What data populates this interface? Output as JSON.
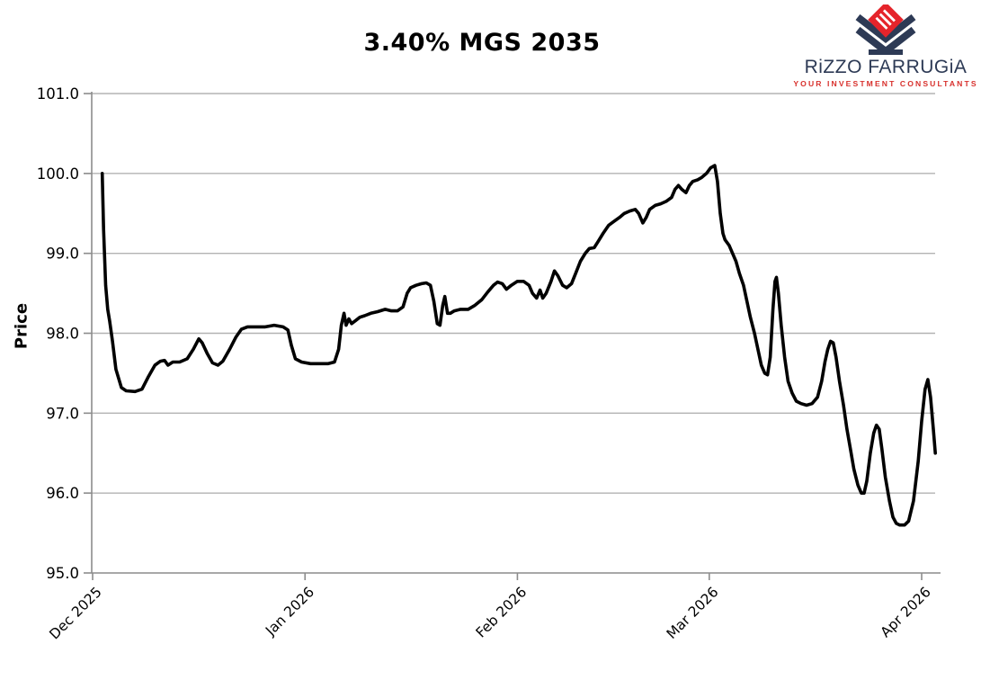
{
  "logo": {
    "name": "RiZZO FARRUGiA",
    "tagline": "YOUR INVESTMENT CONSULTANTS",
    "navy": "#2d3a55",
    "red": "#e5242b"
  },
  "chart_data": {
    "type": "line",
    "title": "3.40% MGS 2035",
    "xlabel": "",
    "ylabel": "Price",
    "ylim": [
      95.0,
      101.0
    ],
    "yticks": [
      95.0,
      96.0,
      97.0,
      98.0,
      99.0,
      100.0,
      101.0
    ],
    "ytick_labels": [
      "95.0",
      "96.0",
      "97.0",
      "98.0",
      "99.0",
      "100.0",
      "101.0"
    ],
    "xtick_labels": [
      "Dec 2025",
      "Jan 2026",
      "Feb 2026",
      "Mar 2026",
      "Apr 2026"
    ],
    "xtick_days": [
      0,
      31,
      62,
      90,
      121
    ],
    "grid": true,
    "legend": "none",
    "line_color": "#000000",
    "grid_color": "#b3b3b3",
    "spine_color": "#8c8c8c",
    "series": [
      {
        "name": "3.40% MGS 2035 price (days since 1 Dec 2025, price)",
        "points": [
          [
            1.4,
            100.0
          ],
          [
            1.6,
            99.3
          ],
          [
            1.9,
            98.6
          ],
          [
            2.2,
            98.3
          ],
          [
            2.5,
            98.15
          ],
          [
            2.9,
            97.9
          ],
          [
            3.4,
            97.55
          ],
          [
            4.2,
            97.32
          ],
          [
            4.9,
            97.28
          ],
          [
            6.2,
            97.27
          ],
          [
            7.2,
            97.3
          ],
          [
            8.1,
            97.45
          ],
          [
            9.1,
            97.6
          ],
          [
            9.9,
            97.65
          ],
          [
            10.5,
            97.66
          ],
          [
            11.0,
            97.6
          ],
          [
            11.7,
            97.64
          ],
          [
            12.7,
            97.64
          ],
          [
            13.8,
            97.68
          ],
          [
            14.7,
            97.8
          ],
          [
            15.5,
            97.93
          ],
          [
            16.0,
            97.88
          ],
          [
            16.7,
            97.75
          ],
          [
            17.5,
            97.63
          ],
          [
            18.3,
            97.6
          ],
          [
            19.0,
            97.65
          ],
          [
            20.0,
            97.8
          ],
          [
            20.9,
            97.95
          ],
          [
            21.7,
            98.05
          ],
          [
            22.6,
            98.08
          ],
          [
            23.9,
            98.08
          ],
          [
            25.2,
            98.08
          ],
          [
            26.5,
            98.1
          ],
          [
            27.8,
            98.08
          ],
          [
            28.5,
            98.04
          ],
          [
            29.0,
            97.85
          ],
          [
            29.6,
            97.68
          ],
          [
            30.5,
            97.64
          ],
          [
            31.8,
            97.62
          ],
          [
            33.1,
            97.62
          ],
          [
            34.4,
            97.62
          ],
          [
            35.3,
            97.64
          ],
          [
            35.9,
            97.8
          ],
          [
            36.3,
            98.1
          ],
          [
            36.7,
            98.25
          ],
          [
            37.0,
            98.1
          ],
          [
            37.4,
            98.18
          ],
          [
            37.8,
            98.12
          ],
          [
            38.4,
            98.16
          ],
          [
            39.0,
            98.2
          ],
          [
            39.7,
            98.22
          ],
          [
            40.6,
            98.25
          ],
          [
            41.6,
            98.27
          ],
          [
            42.7,
            98.3
          ],
          [
            43.6,
            98.28
          ],
          [
            44.5,
            98.28
          ],
          [
            45.3,
            98.33
          ],
          [
            45.9,
            98.5
          ],
          [
            46.4,
            98.57
          ],
          [
            47.2,
            98.6
          ],
          [
            48.0,
            98.62
          ],
          [
            48.7,
            98.63
          ],
          [
            49.3,
            98.6
          ],
          [
            49.8,
            98.4
          ],
          [
            50.3,
            98.12
          ],
          [
            50.7,
            98.1
          ],
          [
            51.1,
            98.35
          ],
          [
            51.4,
            98.46
          ],
          [
            51.8,
            98.25
          ],
          [
            52.2,
            98.25
          ],
          [
            52.8,
            98.28
          ],
          [
            53.7,
            98.3
          ],
          [
            54.8,
            98.3
          ],
          [
            55.8,
            98.35
          ],
          [
            56.8,
            98.42
          ],
          [
            57.7,
            98.52
          ],
          [
            58.5,
            98.6
          ],
          [
            59.1,
            98.64
          ],
          [
            59.8,
            98.62
          ],
          [
            60.4,
            98.55
          ],
          [
            61.1,
            98.6
          ],
          [
            62.0,
            98.65
          ],
          [
            62.9,
            98.65
          ],
          [
            63.7,
            98.6
          ],
          [
            64.2,
            98.5
          ],
          [
            64.8,
            98.44
          ],
          [
            65.3,
            98.54
          ],
          [
            65.7,
            98.44
          ],
          [
            66.2,
            98.5
          ],
          [
            66.9,
            98.65
          ],
          [
            67.4,
            98.78
          ],
          [
            67.9,
            98.72
          ],
          [
            68.6,
            98.6
          ],
          [
            69.2,
            98.57
          ],
          [
            69.9,
            98.62
          ],
          [
            70.5,
            98.75
          ],
          [
            71.2,
            98.9
          ],
          [
            71.9,
            99.0
          ],
          [
            72.5,
            99.06
          ],
          [
            73.2,
            99.07
          ],
          [
            73.8,
            99.15
          ],
          [
            74.5,
            99.25
          ],
          [
            75.3,
            99.35
          ],
          [
            76.1,
            99.4
          ],
          [
            76.9,
            99.45
          ],
          [
            77.6,
            99.5
          ],
          [
            78.4,
            99.53
          ],
          [
            79.2,
            99.55
          ],
          [
            79.7,
            99.5
          ],
          [
            80.3,
            99.38
          ],
          [
            80.8,
            99.45
          ],
          [
            81.3,
            99.55
          ],
          [
            82.1,
            99.6
          ],
          [
            82.9,
            99.62
          ],
          [
            83.7,
            99.65
          ],
          [
            84.5,
            99.7
          ],
          [
            85.0,
            99.8
          ],
          [
            85.5,
            99.85
          ],
          [
            86.0,
            99.8
          ],
          [
            86.6,
            99.76
          ],
          [
            87.1,
            99.85
          ],
          [
            87.6,
            99.9
          ],
          [
            88.3,
            99.92
          ],
          [
            88.9,
            99.95
          ],
          [
            89.6,
            100.0
          ],
          [
            90.2,
            100.07
          ],
          [
            90.8,
            100.1
          ],
          [
            91.2,
            99.9
          ],
          [
            91.6,
            99.5
          ],
          [
            92.0,
            99.25
          ],
          [
            92.3,
            99.17
          ],
          [
            92.9,
            99.1
          ],
          [
            93.4,
            99.0
          ],
          [
            93.9,
            98.9
          ],
          [
            94.4,
            98.75
          ],
          [
            95.0,
            98.6
          ],
          [
            95.5,
            98.4
          ],
          [
            96.0,
            98.2
          ],
          [
            96.6,
            98.0
          ],
          [
            97.1,
            97.8
          ],
          [
            97.6,
            97.6
          ],
          [
            98.1,
            97.5
          ],
          [
            98.5,
            97.48
          ],
          [
            98.9,
            97.7
          ],
          [
            99.3,
            98.3
          ],
          [
            99.6,
            98.65
          ],
          [
            99.8,
            98.7
          ],
          [
            100.1,
            98.5
          ],
          [
            100.5,
            98.1
          ],
          [
            101.0,
            97.7
          ],
          [
            101.5,
            97.4
          ],
          [
            102.1,
            97.25
          ],
          [
            102.7,
            97.15
          ],
          [
            103.4,
            97.12
          ],
          [
            104.2,
            97.1
          ],
          [
            105.0,
            97.12
          ],
          [
            105.8,
            97.2
          ],
          [
            106.4,
            97.4
          ],
          [
            106.9,
            97.65
          ],
          [
            107.3,
            97.8
          ],
          [
            107.7,
            97.9
          ],
          [
            108.1,
            97.88
          ],
          [
            108.5,
            97.7
          ],
          [
            109.0,
            97.4
          ],
          [
            109.6,
            97.1
          ],
          [
            110.1,
            96.8
          ],
          [
            110.6,
            96.55
          ],
          [
            111.1,
            96.3
          ],
          [
            111.7,
            96.1
          ],
          [
            112.2,
            96.0
          ],
          [
            112.6,
            96.0
          ],
          [
            113.0,
            96.15
          ],
          [
            113.5,
            96.5
          ],
          [
            114.0,
            96.75
          ],
          [
            114.4,
            96.85
          ],
          [
            114.8,
            96.8
          ],
          [
            115.2,
            96.55
          ],
          [
            115.7,
            96.2
          ],
          [
            116.3,
            95.9
          ],
          [
            116.8,
            95.7
          ],
          [
            117.3,
            95.62
          ],
          [
            117.8,
            95.6
          ],
          [
            118.5,
            95.6
          ],
          [
            119.1,
            95.65
          ],
          [
            119.8,
            95.9
          ],
          [
            120.5,
            96.4
          ],
          [
            121.0,
            96.9
          ],
          [
            121.5,
            97.3
          ],
          [
            121.9,
            97.42
          ],
          [
            122.3,
            97.2
          ],
          [
            122.7,
            96.8
          ],
          [
            123.0,
            96.5
          ]
        ]
      }
    ]
  }
}
